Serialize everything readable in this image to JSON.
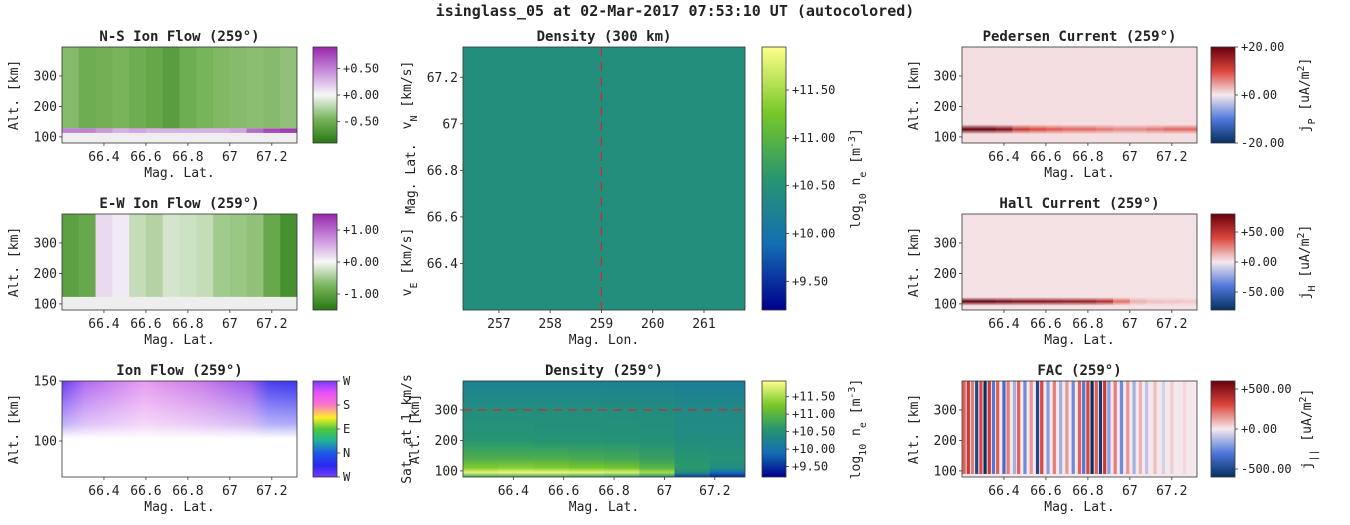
{
  "figure_title": "isinglass_05 at 02-Mar-2017 07:53:10 UT (autocolored)",
  "chart_data": [
    {
      "id": "ns",
      "type": "heatmap",
      "title": "N-S Ion Flow (259°)",
      "xlabel": "Mag. Lat.",
      "ylabel": "Alt. [km]",
      "xticks": [
        "66.4",
        "66.6",
        "66.8",
        "67",
        "67.2"
      ],
      "xtick_values": [
        66.4,
        66.6,
        66.8,
        67.0,
        67.2
      ],
      "xlim": [
        66.2,
        67.32
      ],
      "yticks": [
        "100",
        "200",
        "300"
      ],
      "ytick_values": [
        100,
        200,
        300
      ],
      "ylim": [
        80,
        395
      ],
      "colorbar": {
        "label": "v",
        "label_sub": "N",
        "label_unit": " [km/s]",
        "ticks": [
          "+0.50",
          "+0.00",
          "-0.50"
        ],
        "tick_values": [
          0.5,
          0.0,
          -0.5
        ],
        "range": [
          -0.9,
          0.9
        ],
        "colormap": "PRGn"
      },
      "rows": [
        {
          "alt_range": [
            80,
            113
          ],
          "values": [
            0.0
          ]
        },
        {
          "alt_range": [
            113,
            128
          ],
          "values": [
            0.5,
            0.5,
            0.4,
            0.3,
            0.35,
            0.3,
            0.3,
            0.3,
            0.3,
            0.3,
            0.35,
            0.6,
            0.75,
            0.8
          ]
        },
        {
          "alt_range": [
            128,
            395
          ],
          "values": [
            -0.4,
            -0.5,
            -0.48,
            -0.45,
            -0.5,
            -0.55,
            -0.62,
            -0.5,
            -0.45,
            -0.42,
            -0.4,
            -0.38,
            -0.4,
            -0.36
          ]
        }
      ]
    },
    {
      "id": "ew",
      "type": "heatmap",
      "title": "E-W Ion Flow (259°)",
      "xlabel": "Mag. Lat.",
      "ylabel": "Alt. [km]",
      "xticks": [
        "66.4",
        "66.6",
        "66.8",
        "67",
        "67.2"
      ],
      "xtick_values": [
        66.4,
        66.6,
        66.8,
        67.0,
        67.2
      ],
      "xlim": [
        66.2,
        67.32
      ],
      "yticks": [
        "100",
        "200",
        "300"
      ],
      "ytick_values": [
        100,
        200,
        300
      ],
      "ylim": [
        80,
        395
      ],
      "colorbar": {
        "label": "v",
        "label_sub": "E",
        "label_unit": " [km/s]",
        "ticks": [
          "+1.00",
          "+0.00",
          "-1.00"
        ],
        "tick_values": [
          1.0,
          0.0,
          -1.0
        ],
        "range": [
          -1.5,
          1.5
        ],
        "colormap": "PRGn"
      },
      "rows": [
        {
          "alt_range": [
            80,
            123
          ],
          "values": [
            0.0
          ]
        },
        {
          "alt_range": [
            123,
            395
          ],
          "values": [
            -1.0,
            -0.9,
            0.2,
            0.1,
            -0.3,
            -0.4,
            -0.2,
            -0.25,
            -0.3,
            -0.5,
            -0.55,
            -0.6,
            -0.9,
            -1.2
          ]
        }
      ]
    },
    {
      "id": "ionflow",
      "type": "heatmap",
      "title": "Ion Flow (259°)",
      "xlabel": "Mag. Lat.",
      "ylabel": "Alt. [km]",
      "xticks": [
        "66.4",
        "66.6",
        "66.8",
        "67",
        "67.2"
      ],
      "xtick_values": [
        66.4,
        66.6,
        66.8,
        67.0,
        67.2
      ],
      "xlim": [
        66.2,
        67.32
      ],
      "yticks": [
        "100",
        "150"
      ],
      "ytick_values": [
        100,
        150
      ],
      "ylim": [
        70,
        150
      ],
      "colorbar": {
        "label": "Sat. at 1 km/s",
        "ticks": [
          "W",
          "N",
          "E",
          "S",
          "W"
        ],
        "tick_values": [
          0,
          90,
          180,
          270,
          360
        ],
        "range": [
          0,
          360
        ],
        "colormap": "hsv"
      },
      "rows": [
        {
          "alt_range": [
            70,
            110
          ],
          "values": [
            0
          ]
        },
        {
          "alt_range": [
            110,
            150
          ],
          "values": [
            1
          ]
        }
      ]
    },
    {
      "id": "dens300",
      "type": "heatmap",
      "title": "Density (300 km)",
      "xlabel": "Mag. Lon.",
      "ylabel": "Mag. Lat.",
      "xticks": [
        "257",
        "258",
        "259",
        "260",
        "261"
      ],
      "xtick_values": [
        257,
        258,
        259,
        260,
        261
      ],
      "xlim": [
        256.3,
        261.8
      ],
      "yticks": [
        "66.4",
        "66.6",
        "66.8",
        "67",
        "67.2"
      ],
      "ytick_values": [
        66.4,
        66.6,
        66.8,
        67.0,
        67.2
      ],
      "ylim": [
        66.2,
        67.33
      ],
      "marker_line": {
        "orientation": "vertical",
        "value": 259
      },
      "colorbar": {
        "label": "log",
        "label_sub": "10",
        "label_unit": " n",
        "label_sub2": "e",
        "label_unit2": " [m",
        "label_sup": "-3",
        "label_end": "]",
        "ticks": [
          "+11.50",
          "+11.00",
          "+10.50",
          "+10.00",
          "+9.50"
        ],
        "tick_values": [
          11.5,
          11.0,
          10.5,
          10.0,
          9.5
        ],
        "range": [
          9.2,
          11.95
        ],
        "colormap": "viridis-like"
      },
      "value": 10.43
    },
    {
      "id": "dens259",
      "type": "heatmap",
      "title": "Density (259°)",
      "xlabel": "Mag. Lat.",
      "ylabel": "Alt. [km]",
      "xticks": [
        "66.4",
        "66.6",
        "66.8",
        "67",
        "67.2"
      ],
      "xtick_values": [
        66.4,
        66.6,
        66.8,
        67.0,
        67.2
      ],
      "xlim": [
        66.2,
        67.32
      ],
      "yticks": [
        "100",
        "200",
        "300"
      ],
      "ytick_values": [
        100,
        200,
        300
      ],
      "ylim": [
        80,
        395
      ],
      "marker_line": {
        "orientation": "horizontal",
        "value": 300
      },
      "colorbar": {
        "label": "log",
        "label_sub": "10",
        "label_unit": " n",
        "label_sub2": "e",
        "label_unit2": " [m",
        "label_sup": "-3",
        "label_end": "]",
        "ticks": [
          "+11.50",
          "+11.00",
          "+10.50",
          "+10.00",
          "+9.50"
        ],
        "tick_values": [
          11.5,
          11.0,
          10.5,
          10.0,
          9.5
        ],
        "range": [
          9.2,
          11.95
        ],
        "colormap": "viridis-like"
      },
      "profile": [
        {
          "alt": 80,
          "values": [
            10.8,
            10.8,
            10.8,
            10.7,
            10.6,
            10.4,
            9.6,
            9.4
          ]
        },
        {
          "alt": 95,
          "values": [
            11.8,
            11.85,
            11.85,
            11.8,
            11.75,
            11.5,
            10.4,
            9.9
          ]
        },
        {
          "alt": 110,
          "values": [
            11.3,
            11.35,
            11.3,
            11.25,
            11.2,
            11.0,
            10.6,
            10.4
          ]
        },
        {
          "alt": 140,
          "values": [
            10.9,
            10.9,
            10.9,
            10.85,
            10.8,
            10.7,
            10.55,
            10.5
          ]
        },
        {
          "alt": 200,
          "values": [
            10.55,
            10.55,
            10.5,
            10.5,
            10.5,
            10.48,
            10.4,
            10.4
          ]
        },
        {
          "alt": 300,
          "values": [
            10.43,
            10.43,
            10.43,
            10.43,
            10.42,
            10.4,
            10.35,
            10.35
          ]
        },
        {
          "alt": 395,
          "values": [
            10.2,
            10.2,
            10.2,
            10.2,
            10.2,
            10.2,
            10.15,
            10.15
          ]
        }
      ]
    },
    {
      "id": "ped",
      "type": "heatmap",
      "title": "Pedersen Current (259°)",
      "xlabel": "Mag. Lat.",
      "ylabel": "Alt. [km]",
      "xticks": [
        "66.4",
        "66.6",
        "66.8",
        "67",
        "67.2"
      ],
      "xtick_values": [
        66.4,
        66.6,
        66.8,
        67.0,
        67.2
      ],
      "xlim": [
        66.2,
        67.32
      ],
      "yticks": [
        "100",
        "200",
        "300"
      ],
      "ytick_values": [
        100,
        200,
        300
      ],
      "ylim": [
        80,
        395
      ],
      "colorbar": {
        "label": "j",
        "label_sub": "P",
        "label_unit": " [uA/m",
        "label_sup": "2",
        "label_end": "]",
        "ticks": [
          "+20.00",
          "+0.00",
          "-20.00"
        ],
        "tick_values": [
          20,
          0,
          -20
        ],
        "range": [
          -20,
          20
        ],
        "colormap": "RdBu_r"
      },
      "band": {
        "alt_center": 125,
        "half_width": 16,
        "peak": [
          20,
          20,
          18,
          12,
          10,
          9,
          8,
          8,
          7,
          6,
          6,
          7,
          8,
          8
        ]
      },
      "background": 0.6
    },
    {
      "id": "hall",
      "type": "heatmap",
      "title": "Hall Current (259°)",
      "xlabel": "Mag. Lat.",
      "ylabel": "Alt. [km]",
      "xticks": [
        "66.4",
        "66.6",
        "66.8",
        "67",
        "67.2"
      ],
      "xtick_values": [
        66.4,
        66.6,
        66.8,
        67.0,
        67.2
      ],
      "xlim": [
        66.2,
        67.32
      ],
      "yticks": [
        "100",
        "200",
        "300"
      ],
      "ytick_values": [
        100,
        200,
        300
      ],
      "ylim": [
        80,
        395
      ],
      "colorbar": {
        "label": "j",
        "label_sub": "H",
        "label_unit": " [uA/m",
        "label_sup": "2",
        "label_end": "]",
        "ticks": [
          "+50.00",
          "+0.00",
          "-50.00"
        ],
        "tick_values": [
          50,
          0,
          -50
        ],
        "range": [
          -80,
          80
        ],
        "colormap": "RdBu_r"
      },
      "band": {
        "alt_center": 108,
        "half_width": 14,
        "peak": [
          80,
          80,
          75,
          70,
          70,
          68,
          66,
          64,
          55,
          30,
          14,
          10,
          9,
          8
        ]
      },
      "background": 1.5
    },
    {
      "id": "fac",
      "type": "heatmap",
      "title": "FAC (259°)",
      "xlabel": "Mag. Lat.",
      "ylabel": "Alt. [km]",
      "xticks": [
        "66.4",
        "66.6",
        "66.8",
        "67",
        "67.2"
      ],
      "xtick_values": [
        66.4,
        66.6,
        66.8,
        67.0,
        67.2
      ],
      "xlim": [
        66.2,
        67.32
      ],
      "yticks": [
        "100",
        "200",
        "300"
      ],
      "ytick_values": [
        100,
        200,
        300
      ],
      "ylim": [
        80,
        395
      ],
      "colorbar": {
        "label": "j",
        "label_sub": "||",
        "label_unit": " [uA/m",
        "label_sup": "2",
        "label_end": "]",
        "ticks": [
          "+500.00",
          "+0.00",
          "-500.00"
        ],
        "tick_values": [
          500,
          0,
          -500
        ],
        "range": [
          -600,
          600
        ],
        "colormap": "RdBu_r"
      },
      "columns": [
        {
          "lat": 66.21,
          "v": 250
        },
        {
          "lat": 66.23,
          "v": 350
        },
        {
          "lat": 66.25,
          "v": 200
        },
        {
          "lat": 66.27,
          "v": -500
        },
        {
          "lat": 66.29,
          "v": 300
        },
        {
          "lat": 66.31,
          "v": -600
        },
        {
          "lat": 66.33,
          "v": 350
        },
        {
          "lat": 66.35,
          "v": -300
        },
        {
          "lat": 66.37,
          "v": 250
        },
        {
          "lat": 66.4,
          "v": -350
        },
        {
          "lat": 66.42,
          "v": 200
        },
        {
          "lat": 66.45,
          "v": -150
        },
        {
          "lat": 66.47,
          "v": 250
        },
        {
          "lat": 66.5,
          "v": -250
        },
        {
          "lat": 66.53,
          "v": 150
        },
        {
          "lat": 66.56,
          "v": -500
        },
        {
          "lat": 66.58,
          "v": 300
        },
        {
          "lat": 66.61,
          "v": -200
        },
        {
          "lat": 66.64,
          "v": 200
        },
        {
          "lat": 66.67,
          "v": -150
        },
        {
          "lat": 66.7,
          "v": 150
        },
        {
          "lat": 66.73,
          "v": -250
        },
        {
          "lat": 66.76,
          "v": 250
        },
        {
          "lat": 66.78,
          "v": -300
        },
        {
          "lat": 66.8,
          "v": 300
        },
        {
          "lat": 66.82,
          "v": -600
        },
        {
          "lat": 66.84,
          "v": 250
        },
        {
          "lat": 66.86,
          "v": -550
        },
        {
          "lat": 66.88,
          "v": 350
        },
        {
          "lat": 66.9,
          "v": -200
        },
        {
          "lat": 66.93,
          "v": 200
        },
        {
          "lat": 66.96,
          "v": -250
        },
        {
          "lat": 66.99,
          "v": 150
        },
        {
          "lat": 67.02,
          "v": -150
        },
        {
          "lat": 67.05,
          "v": 100
        },
        {
          "lat": 67.08,
          "v": -100
        },
        {
          "lat": 67.12,
          "v": 80
        },
        {
          "lat": 67.16,
          "v": -60
        },
        {
          "lat": 67.2,
          "v": 50
        },
        {
          "lat": 67.26,
          "v": 30
        }
      ]
    }
  ]
}
